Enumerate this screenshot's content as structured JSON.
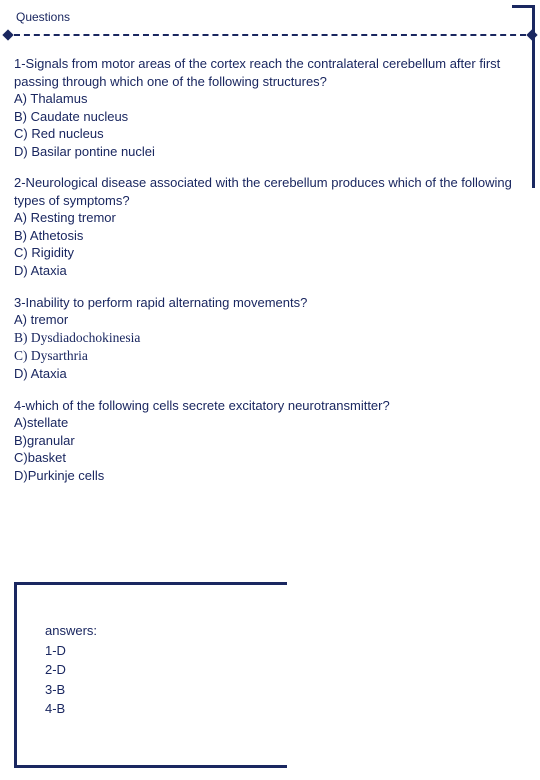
{
  "header": {
    "label": "Questions"
  },
  "colors": {
    "primary": "#1a2760",
    "background": "#ffffff"
  },
  "questions": [
    {
      "prompt": "1-Signals from motor areas of the cortex reach the contralateral cerebellum after first passing through which one of the following structures?",
      "options": [
        "A) Thalamus",
        "B) Caudate nucleus",
        "C) Red nucleus",
        "D) Basilar pontine nuclei"
      ]
    },
    {
      "prompt": "2-Neurological disease associated with the cerebellum produces which of the following types of symptoms?",
      "options": [
        "A) Resting tremor",
        "B) Athetosis",
        "C) Rigidity",
        "D) Ataxia"
      ]
    },
    {
      "prompt": "3-Inability to perform rapid alternating movements?",
      "options": [
        "A) tremor",
        "B) Dysdiadochokinesia",
        "C) Dysarthria",
        "D) Ataxia"
      ],
      "serif_options": [
        1,
        2
      ]
    },
    {
      "prompt": "4-which of the following cells secrete excitatory neurotransmitter?",
      "options": [
        "A)stellate",
        "B)granular",
        "C)basket",
        "D)Purkinje cells"
      ]
    }
  ],
  "answers": {
    "heading": "answers:",
    "lines": [
      "1-D",
      "2-D",
      "3-B",
      "4-B"
    ]
  }
}
